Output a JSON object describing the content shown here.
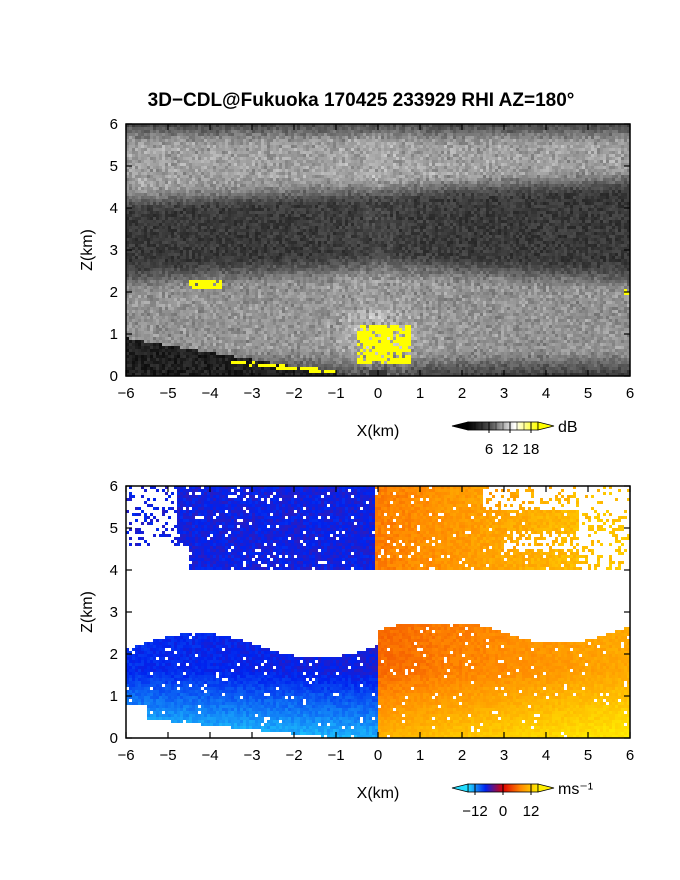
{
  "title": "3D−CDL@Fukuoka 170425 233929 RHI AZ=180°",
  "chart_data": [
    {
      "type": "heatmap",
      "panel": "reflectivity",
      "xlabel": "X(km)",
      "ylabel": "Z(km)",
      "xlim": [
        -6,
        6
      ],
      "ylim": [
        0,
        6
      ],
      "xticks": [
        "−6",
        "−5",
        "−4",
        "−3",
        "−2",
        "−1",
        "0",
        "1",
        "2",
        "3",
        "4",
        "5",
        "6"
      ],
      "yticks": [
        "0",
        "1",
        "2",
        "3",
        "4",
        "5",
        "6"
      ],
      "colorbar": {
        "unit": "dB",
        "ticks": [
          "6",
          "12",
          "18"
        ],
        "range": [
          0,
          20
        ],
        "colors": [
          "#000000",
          "#ffffff",
          "#ffff00"
        ]
      },
      "features": [
        {
          "name": "upper cloud layer",
          "z_range": [
            4.2,
            5.8
          ],
          "x_range": [
            -6,
            6
          ],
          "level_dB": 12
        },
        {
          "name": "lower cloud layer",
          "z_range": [
            0.3,
            2.6
          ],
          "x_range": [
            -6,
            6
          ],
          "level_dB": 11
        },
        {
          "name": "ground clutter below beam",
          "x_range": [
            -6,
            -1
          ],
          "level_dB": 2
        }
      ],
      "saturated_regions": [
        {
          "x": [
            -4.5,
            -3.7
          ],
          "z": [
            2.05,
            2.3
          ]
        },
        {
          "x": [
            -0.5,
            0.8
          ],
          "z": [
            0.3,
            1.2
          ]
        },
        {
          "x": [
            5.85,
            6.0
          ],
          "z": [
            1.9,
            2.05
          ]
        }
      ]
    },
    {
      "type": "heatmap",
      "panel": "doppler_velocity",
      "xlabel": "X(km)",
      "ylabel": "Z(km)",
      "xlim": [
        -6,
        6
      ],
      "ylim": [
        0,
        6
      ],
      "xticks": [
        "−6",
        "−5",
        "−4",
        "−3",
        "−2",
        "−1",
        "0",
        "1",
        "2",
        "3",
        "4",
        "5",
        "6"
      ],
      "yticks": [
        "0",
        "1",
        "2",
        "3",
        "4",
        "5",
        "6"
      ],
      "colorbar": {
        "unit": "ms⁻¹",
        "ticks": [
          "−12",
          "0",
          "12"
        ],
        "range": [
          -15,
          15
        ],
        "colors": [
          "#22ddff",
          "#0022ee",
          "#dd0000",
          "#ff8800",
          "#ffee00"
        ]
      },
      "features": [
        {
          "name": "upper layer",
          "z_range": [
            4.0,
            6.0
          ],
          "x_range": [
            -6,
            6
          ],
          "velocity_left": -6,
          "velocity_right": 6
        },
        {
          "name": "lower layer",
          "z_range": [
            0.0,
            2.7
          ],
          "x_range": [
            -6,
            6
          ],
          "velocity_left": -12,
          "velocity_right": 12
        }
      ]
    }
  ]
}
